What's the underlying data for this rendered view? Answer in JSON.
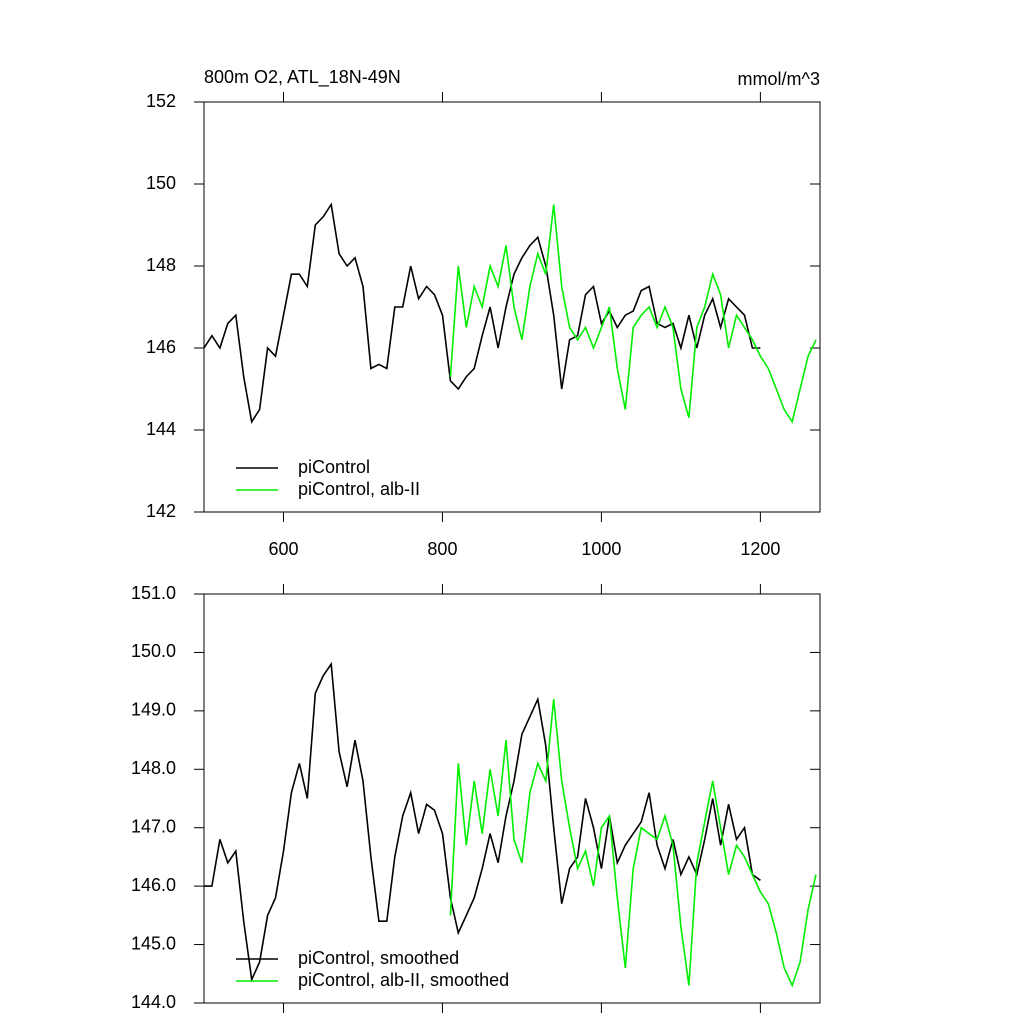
{
  "chart_data": [
    {
      "type": "line",
      "title": "800m O2, ATL_18N-49N",
      "units_label": "mmol/m^3",
      "x": [
        500,
        510,
        520,
        530,
        540,
        550,
        560,
        570,
        580,
        590,
        600,
        610,
        620,
        630,
        640,
        650,
        660,
        670,
        680,
        690,
        700,
        710,
        720,
        730,
        740,
        750,
        760,
        770,
        780,
        790,
        800,
        810,
        820,
        830,
        840,
        850,
        860,
        870,
        880,
        890,
        900,
        910,
        920,
        930,
        940,
        950,
        960,
        970,
        980,
        990,
        1000,
        1010,
        1020,
        1030,
        1040,
        1050,
        1060,
        1070,
        1080,
        1090,
        1100,
        1110,
        1120,
        1130,
        1140,
        1150,
        1160,
        1170,
        1180,
        1190,
        1200,
        1210,
        1220,
        1230,
        1240,
        1250,
        1260,
        1270
      ],
      "series": [
        {
          "name": "piControl",
          "color": "#000000",
          "values": [
            146.0,
            146.3,
            146.0,
            146.6,
            146.8,
            145.3,
            144.2,
            144.5,
            146.0,
            145.8,
            146.8,
            147.8,
            147.8,
            147.5,
            149.0,
            149.2,
            149.5,
            148.3,
            148.0,
            148.2,
            147.5,
            145.5,
            145.6,
            145.5,
            147.0,
            147.0,
            148.0,
            147.2,
            147.5,
            147.3,
            146.8,
            145.2,
            145.0,
            145.3,
            145.5,
            146.3,
            147.0,
            146.0,
            147.0,
            147.8,
            148.2,
            148.5,
            148.7,
            148.0,
            146.8,
            145.0,
            146.2,
            146.3,
            147.3,
            147.5,
            146.6,
            146.9,
            146.5,
            146.8,
            146.9,
            147.4,
            147.5,
            146.6,
            146.5,
            146.6,
            146.0,
            146.8,
            146.0,
            146.8,
            147.2,
            146.5,
            147.2,
            147.0,
            146.8,
            146.0,
            146.0,
            null,
            null,
            null,
            null,
            null,
            null,
            null
          ]
        },
        {
          "name": "piControl, alb-II",
          "color": "#00ee00",
          "values": [
            null,
            null,
            null,
            null,
            null,
            null,
            null,
            null,
            null,
            null,
            null,
            null,
            null,
            null,
            null,
            null,
            null,
            null,
            null,
            null,
            null,
            null,
            null,
            null,
            null,
            null,
            null,
            null,
            null,
            null,
            null,
            145.3,
            148.0,
            146.5,
            147.5,
            147.0,
            148.0,
            147.5,
            148.5,
            147.0,
            146.2,
            147.5,
            148.3,
            147.8,
            149.5,
            147.5,
            146.5,
            146.2,
            146.5,
            146.0,
            146.5,
            147.0,
            145.5,
            144.5,
            146.5,
            146.8,
            147.0,
            146.5,
            147.0,
            146.5,
            145.0,
            144.3,
            146.5,
            147.0,
            147.8,
            147.3,
            146.0,
            146.8,
            146.5,
            146.2,
            145.8,
            145.5,
            145.0,
            144.5,
            144.2,
            145.0,
            145.8,
            146.2
          ]
        }
      ],
      "xlim": [
        500,
        1275
      ],
      "xticks": [
        600,
        800,
        1000,
        1200
      ],
      "xtick_labels": true,
      "ylim": [
        142,
        152
      ],
      "yticks": [
        142,
        144,
        146,
        148,
        150,
        152
      ],
      "legend": "lower left"
    },
    {
      "type": "line",
      "x": [
        500,
        510,
        520,
        530,
        540,
        550,
        560,
        570,
        580,
        590,
        600,
        610,
        620,
        630,
        640,
        650,
        660,
        670,
        680,
        690,
        700,
        710,
        720,
        730,
        740,
        750,
        760,
        770,
        780,
        790,
        800,
        810,
        820,
        830,
        840,
        850,
        860,
        870,
        880,
        890,
        900,
        910,
        920,
        930,
        940,
        950,
        960,
        970,
        980,
        990,
        1000,
        1010,
        1020,
        1030,
        1040,
        1050,
        1060,
        1070,
        1080,
        1090,
        1100,
        1110,
        1120,
        1130,
        1140,
        1150,
        1160,
        1170,
        1180,
        1190,
        1200,
        1210,
        1220,
        1230,
        1240,
        1250,
        1260,
        1270
      ],
      "series": [
        {
          "name": "piControl, smoothed",
          "color": "#000000",
          "values": [
            146.0,
            146.0,
            146.8,
            146.4,
            146.6,
            145.4,
            144.4,
            144.7,
            145.5,
            145.8,
            146.6,
            147.6,
            148.1,
            147.5,
            149.3,
            149.6,
            149.8,
            148.3,
            147.7,
            148.5,
            147.8,
            146.5,
            145.4,
            145.4,
            146.5,
            147.2,
            147.6,
            146.9,
            147.4,
            147.3,
            146.9,
            145.8,
            145.2,
            145.5,
            145.8,
            146.3,
            146.9,
            146.4,
            147.2,
            147.8,
            148.6,
            148.9,
            149.2,
            148.4,
            147.0,
            145.7,
            146.3,
            146.5,
            147.5,
            147.0,
            146.3,
            147.2,
            146.4,
            146.7,
            146.9,
            147.1,
            147.6,
            146.7,
            146.3,
            146.8,
            146.2,
            146.5,
            146.2,
            146.8,
            147.5,
            146.7,
            147.4,
            146.8,
            147.0,
            146.2,
            146.1,
            null,
            null,
            null,
            null,
            null,
            null,
            null
          ]
        },
        {
          "name": "piControl, alb-II, smoothed",
          "color": "#00ee00",
          "values": [
            null,
            null,
            null,
            null,
            null,
            null,
            null,
            null,
            null,
            null,
            null,
            null,
            null,
            null,
            null,
            null,
            null,
            null,
            null,
            null,
            null,
            null,
            null,
            null,
            null,
            null,
            null,
            null,
            null,
            null,
            null,
            145.5,
            148.1,
            146.7,
            147.8,
            146.9,
            148.0,
            147.2,
            148.5,
            146.8,
            146.4,
            147.6,
            148.1,
            147.8,
            149.2,
            147.8,
            147.0,
            146.3,
            146.6,
            146.0,
            147.0,
            147.2,
            145.8,
            144.6,
            146.3,
            147.0,
            146.9,
            146.8,
            147.2,
            146.7,
            145.3,
            144.3,
            146.4,
            147.1,
            147.8,
            147.0,
            146.2,
            146.7,
            146.5,
            146.2,
            145.9,
            145.7,
            145.2,
            144.6,
            144.3,
            144.7,
            145.6,
            146.2
          ]
        }
      ],
      "xlim": [
        500,
        1275
      ],
      "xticks": [
        600,
        800,
        1000,
        1200
      ],
      "xtick_labels": false,
      "ylim": [
        144,
        151
      ],
      "yticks": [
        {
          "value": 144,
          "label": "144.0"
        },
        {
          "value": 145,
          "label": "145.0"
        },
        {
          "value": 146,
          "label": "146.0"
        },
        {
          "value": 147,
          "label": "147.0"
        },
        {
          "value": 148,
          "label": "148.0"
        },
        {
          "value": 149,
          "label": "149.0"
        },
        {
          "value": 150,
          "label": "150.0"
        },
        {
          "value": 151,
          "label": "151.0"
        }
      ],
      "legend": "lower left"
    }
  ]
}
